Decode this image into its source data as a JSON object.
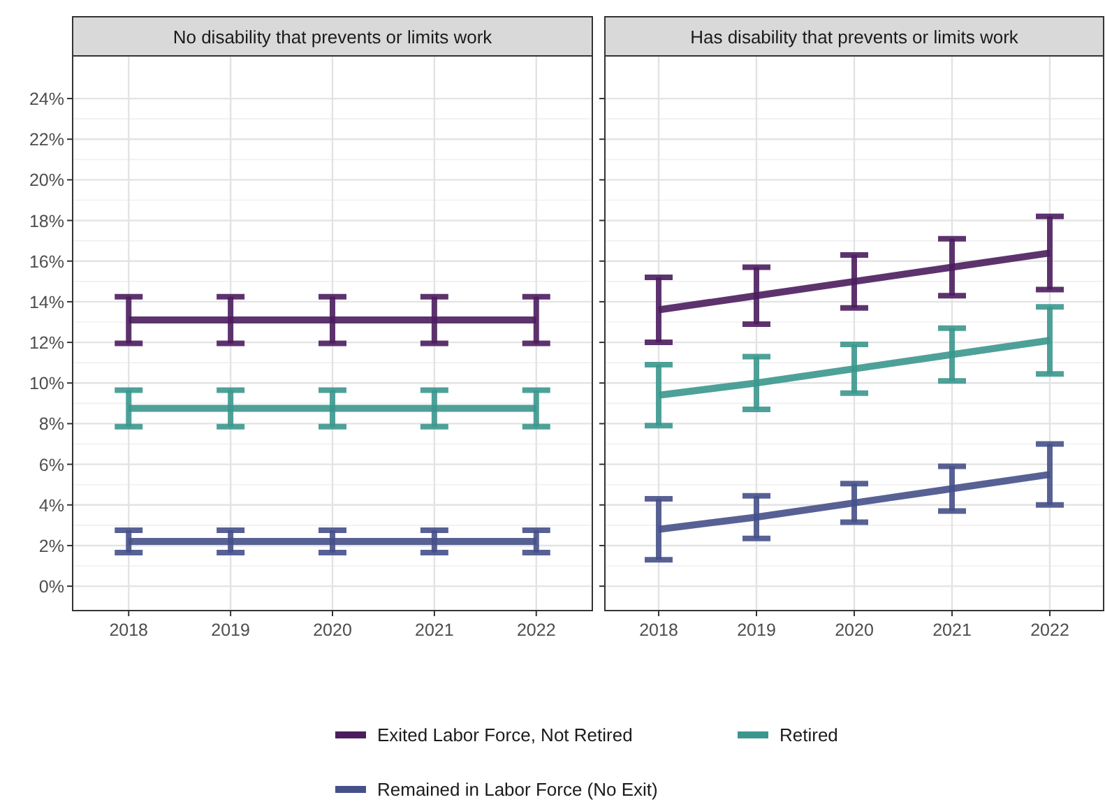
{
  "chart_data": [
    {
      "type": "line",
      "title": "No disability that prevents or limits work",
      "categories": [
        "2018",
        "2019",
        "2020",
        "2021",
        "2022"
      ],
      "ylim": [
        -1.2,
        26.1
      ],
      "yticks": [
        {
          "value": 0,
          "label": "0%"
        },
        {
          "value": 2,
          "label": "2%"
        },
        {
          "value": 4,
          "label": "4%"
        },
        {
          "value": 6,
          "label": "6%"
        },
        {
          "value": 8,
          "label": "8%"
        },
        {
          "value": 10,
          "label": "10%"
        },
        {
          "value": 12,
          "label": "12%"
        },
        {
          "value": 14,
          "label": "14%"
        },
        {
          "value": 16,
          "label": "16%"
        },
        {
          "value": 18,
          "label": "18%"
        },
        {
          "value": 20,
          "label": "20%"
        },
        {
          "value": 22,
          "label": "22%"
        },
        {
          "value": 24,
          "label": "24%"
        }
      ],
      "grid": true,
      "legend": "bottom",
      "marker": "none",
      "series": [
        {
          "name": "Exited Labor Force, Not Retired",
          "color": "#4b1d5e",
          "values": [
            13.1,
            13.1,
            13.1,
            13.1,
            13.1
          ],
          "errors": [
            1.15,
            1.15,
            1.15,
            1.15,
            1.15
          ]
        },
        {
          "name": "Retired",
          "color": "#3b978d",
          "values": [
            8.75,
            8.75,
            8.75,
            8.75,
            8.75
          ],
          "errors": [
            0.9,
            0.9,
            0.9,
            0.9,
            0.9
          ]
        },
        {
          "name": "Remained in Labor Force (No Exit)",
          "color": "#465088",
          "values": [
            2.2,
            2.2,
            2.2,
            2.2,
            2.2
          ],
          "errors": [
            0.55,
            0.55,
            0.55,
            0.55,
            0.55
          ]
        }
      ]
    },
    {
      "type": "line",
      "title": "Has disability that prevents or limits work",
      "categories": [
        "2018",
        "2019",
        "2020",
        "2021",
        "2022"
      ],
      "ylim": [
        -1.2,
        26.1
      ],
      "yticks": [
        {
          "value": 0,
          "label": null
        },
        {
          "value": 2,
          "label": null
        },
        {
          "value": 4,
          "label": null
        },
        {
          "value": 6,
          "label": null
        },
        {
          "value": 8,
          "label": null
        },
        {
          "value": 10,
          "label": null
        },
        {
          "value": 12,
          "label": null
        },
        {
          "value": 14,
          "label": null
        },
        {
          "value": 16,
          "label": null
        },
        {
          "value": 18,
          "label": null
        },
        {
          "value": 20,
          "label": null
        },
        {
          "value": 22,
          "label": null
        },
        {
          "value": 24,
          "label": null
        }
      ],
      "grid": true,
      "tick_labels": "x",
      "marker": "none",
      "series": [
        {
          "color": "#4b1d5e",
          "values": [
            13.6,
            14.3,
            15.0,
            15.7,
            16.4
          ],
          "errors": [
            1.6,
            1.4,
            1.3,
            1.4,
            1.8
          ]
        },
        {
          "color": "#3b978d",
          "values": [
            9.4,
            10.0,
            10.7,
            11.4,
            12.1
          ],
          "errors": [
            1.5,
            1.3,
            1.2,
            1.3,
            1.65
          ]
        },
        {
          "color": "#465088",
          "values": [
            2.8,
            3.4,
            4.1,
            4.8,
            5.5
          ],
          "errors": [
            1.5,
            1.05,
            0.95,
            1.1,
            1.5
          ]
        }
      ]
    }
  ]
}
